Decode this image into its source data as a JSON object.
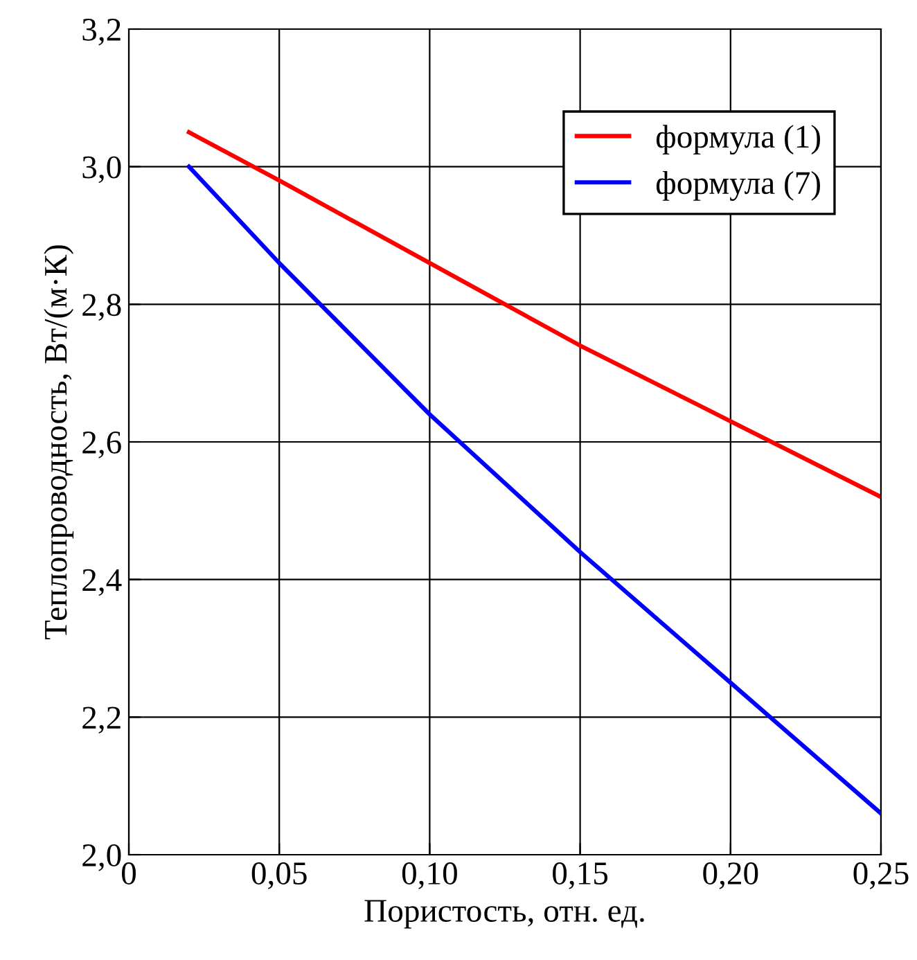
{
  "chart_data": {
    "type": "line",
    "xlabel": "Пористость, отн. ед.",
    "ylabel": "Теплопроводность, Вт/(м·К)",
    "series": [
      {
        "name": "формула (1)",
        "color": "#ff0000",
        "x": [
          0.02,
          0.05,
          0.1,
          0.15,
          0.2,
          0.25
        ],
        "values": [
          3.05,
          2.98,
          2.86,
          2.74,
          2.63,
          2.52
        ]
      },
      {
        "name": "формула (7)",
        "color": "#0000ff",
        "x": [
          0.02,
          0.05,
          0.1,
          0.15,
          0.2,
          0.25
        ],
        "values": [
          3.0,
          2.86,
          2.64,
          2.44,
          2.25,
          2.06
        ]
      }
    ],
    "xlim": [
      0,
      0.25
    ],
    "ylim": [
      2.0,
      3.2
    ],
    "xticks": [
      0,
      {
        "value": 0.05,
        "label": "0,05"
      },
      {
        "value": 0.1,
        "label": "0,10"
      },
      {
        "value": 0.15,
        "label": "0,15"
      },
      {
        "value": 0.2,
        "label": "0,20"
      },
      {
        "value": 0.25,
        "label": "0,25"
      }
    ],
    "yticks": [
      {
        "value": 2.0,
        "label": "2,0"
      },
      {
        "value": 2.2,
        "label": "2,2"
      },
      {
        "value": 2.4,
        "label": "2,4"
      },
      {
        "value": 2.6,
        "label": "2,6"
      },
      {
        "value": 2.8,
        "label": "2,8"
      },
      {
        "value": 3.0,
        "label": "3,0"
      },
      {
        "value": 3.2,
        "label": "3,2"
      }
    ],
    "grid": true,
    "legend": "top right",
    "line_style": "solid",
    "marker": "none"
  }
}
